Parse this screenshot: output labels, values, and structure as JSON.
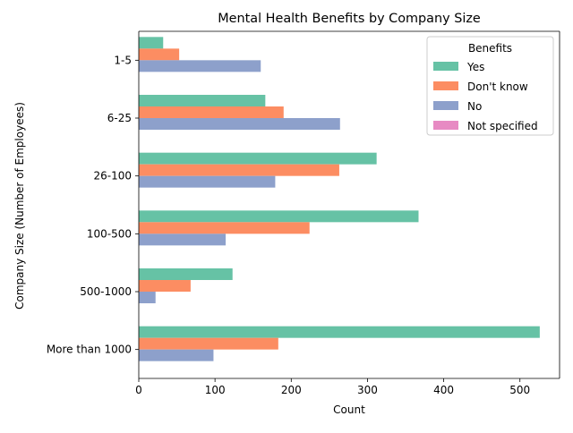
{
  "chart_data": {
    "type": "bar",
    "orientation": "horizontal",
    "title": "Mental Health Benefits by Company Size",
    "xlabel": "Count",
    "ylabel": "Company Size (Number of Employees)",
    "xlim": [
      0,
      552
    ],
    "xticks": [
      0,
      100,
      200,
      300,
      400,
      500
    ],
    "grid": false,
    "categories": [
      "1-5",
      "6-25",
      "26-100",
      "100-500",
      "500-1000",
      "More than 1000"
    ],
    "legend": {
      "title": "Benefits",
      "placement": "top-right"
    },
    "series": [
      {
        "name": "Yes",
        "color": "#66c2a5",
        "values": [
          32,
          166,
          312,
          367,
          123,
          526
        ]
      },
      {
        "name": "Don't know",
        "color": "#fc8d62",
        "values": [
          53,
          190,
          263,
          224,
          68,
          183
        ]
      },
      {
        "name": "No",
        "color": "#8da0cb",
        "values": [
          160,
          264,
          179,
          114,
          22,
          98
        ]
      },
      {
        "name": "Not specified",
        "color": "#e78ac3",
        "values": [
          0,
          0,
          0,
          0,
          0,
          0
        ]
      }
    ]
  }
}
